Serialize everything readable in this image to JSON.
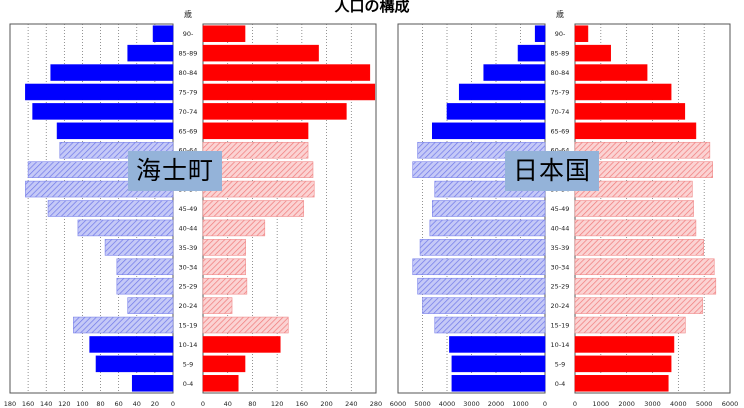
{
  "title": "人口の構成",
  "colors": {
    "male_solid": "#0000ff",
    "male_hatch": "#aab0f2",
    "female_solid": "#ff0000",
    "female_hatch": "#f7b3b3",
    "label_bg": "#94b3d9"
  },
  "chart_data": [
    {
      "type": "bar",
      "orientation": "horizontal",
      "subtype": "population-pyramid",
      "label": "海士町",
      "unit_label": "歳",
      "age_groups": [
        "0-4",
        "5-9",
        "10-14",
        "15-19",
        "20-24",
        "25-29",
        "30-34",
        "35-39",
        "40-44",
        "45-49",
        "50-54",
        "55-59",
        "60-64",
        "65-69",
        "70-74",
        "75-79",
        "80-84",
        "85-89",
        "90-"
      ],
      "series": [
        {
          "side": "left",
          "values": [
            45,
            85,
            92,
            110,
            50,
            62,
            62,
            75,
            105,
            138,
            163,
            160,
            125,
            128,
            155,
            163,
            135,
            50,
            22
          ]
        },
        {
          "side": "right",
          "values": [
            57,
            68,
            125,
            138,
            47,
            71,
            69,
            69,
            100,
            163,
            180,
            178,
            170,
            170,
            232,
            278,
            270,
            187,
            68
          ]
        }
      ],
      "solid_age_groups": [
        "0-4",
        "5-9",
        "10-14",
        "65-69",
        "70-74",
        "75-79",
        "80-84",
        "85-89",
        "90-"
      ],
      "x_ticks": {
        "left": [
          "180",
          "160",
          "140",
          "120",
          "100",
          "80",
          "60",
          "40",
          "20",
          "0"
        ],
        "right": [
          "0",
          "40",
          "80",
          "120",
          "160",
          "200",
          "240",
          "280"
        ]
      },
      "xlim": {
        "left": [
          0,
          180
        ],
        "right": [
          0,
          280
        ]
      }
    },
    {
      "type": "bar",
      "orientation": "horizontal",
      "subtype": "population-pyramid",
      "label": "日本国",
      "unit_label": "歳",
      "age_groups": [
        "0-4",
        "5-9",
        "10-14",
        "15-19",
        "20-24",
        "25-29",
        "30-34",
        "35-39",
        "40-44",
        "45-49",
        "50-54",
        "55-59",
        "60-64",
        "65-69",
        "70-74",
        "75-79",
        "80-84",
        "85-89",
        "90-"
      ],
      "series": [
        {
          "side": "left",
          "values": [
            3800,
            3800,
            3900,
            4500,
            5000,
            5200,
            5400,
            5100,
            4700,
            4600,
            4500,
            5400,
            5200,
            4600,
            4000,
            3500,
            2500,
            1100,
            400
          ]
        },
        {
          "side": "right",
          "values": [
            3610,
            3720,
            3830,
            4270,
            4940,
            5450,
            5390,
            4980,
            4680,
            4590,
            4540,
            5330,
            5220,
            4680,
            4250,
            3720,
            2790,
            1380,
            500
          ]
        }
      ],
      "solid_age_groups": [
        "0-4",
        "5-9",
        "10-14",
        "65-69",
        "70-74",
        "75-79",
        "80-84",
        "85-89",
        "90-"
      ],
      "x_ticks": {
        "left": [
          "6000",
          "5000",
          "4000",
          "3000",
          "2000",
          "1000",
          "0"
        ],
        "right": [
          "0",
          "1000",
          "2000",
          "3000",
          "4000",
          "5000",
          "6000"
        ]
      },
      "xlim": {
        "left": [
          0,
          6000
        ],
        "right": [
          0,
          6000
        ]
      }
    }
  ]
}
